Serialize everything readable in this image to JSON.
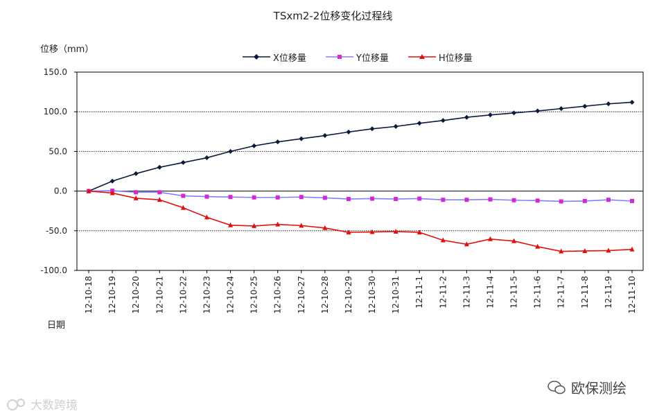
{
  "chart_data": {
    "type": "line",
    "title": "TSxm2-2位移变化过程线",
    "ylabel": "位移（mm）",
    "xlabel": "日期",
    "ylim": [
      -100,
      150
    ],
    "yticks": [
      150,
      100,
      50,
      0,
      -50,
      -100
    ],
    "ytick_labels": [
      "150.0",
      "100.0",
      "50.0",
      "0.0",
      "-50.0",
      "-100.0"
    ],
    "grid": true,
    "legend_position": "top-center",
    "categories": [
      "12-10-18",
      "12-10-19",
      "12-10-20",
      "12-10-21",
      "12-10-22",
      "12-10-23",
      "12-10-24",
      "12-10-25",
      "12-10-26",
      "12-10-27",
      "12-10-28",
      "12-10-29",
      "12-10-30",
      "12-10-31",
      "12-11-1",
      "12-11-2",
      "12-11-3",
      "12-11-4",
      "12-11-5",
      "12-11-6",
      "12-11-7",
      "12-11-8",
      "12-11-9",
      "12-11-10"
    ],
    "series": [
      {
        "name": "X位移量",
        "color": "#0a1a3c",
        "marker": "diamond",
        "values": [
          0,
          12.5,
          22,
          30,
          36,
          42,
          50,
          57,
          62,
          66,
          70,
          74.5,
          78.5,
          81.5,
          85.5,
          89,
          93,
          96,
          98.5,
          101,
          104,
          107,
          110,
          112
        ]
      },
      {
        "name": "Y位移量",
        "color": "#d428d4",
        "marker": "square",
        "values": [
          0,
          0.5,
          -1.5,
          -1.5,
          -6,
          -7,
          -7.5,
          -8,
          -8,
          -7.5,
          -8.5,
          -10,
          -9.5,
          -10,
          -9.5,
          -11,
          -11,
          -10.5,
          -11.5,
          -12,
          -13,
          -12.5,
          -11,
          -12.5
        ]
      },
      {
        "name": "H位移量",
        "color": "#e01010",
        "marker": "triangle",
        "values": [
          0,
          -2.5,
          -9,
          -11,
          -21,
          -33,
          -43,
          -44,
          -42,
          -43.5,
          -46.5,
          -52,
          -51.5,
          -51,
          -52,
          -62,
          -67,
          -60.5,
          -63,
          -70,
          -76,
          -75.5,
          -75,
          -73.5
        ]
      }
    ]
  },
  "watermarks": {
    "right_text": "欧保测绘",
    "left_text": "大数跨境"
  }
}
